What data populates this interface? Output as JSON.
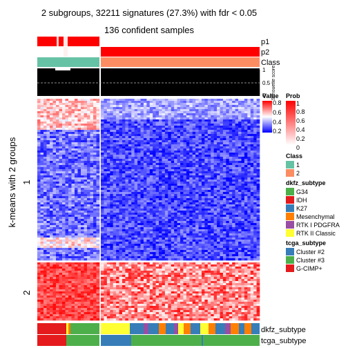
{
  "chart_data": {
    "type": "heatmap",
    "title": "2 subgroups, 32211 signatures (27.3%) with fdr < 0.05",
    "subtitle": "136 confident samples",
    "ylabel": "k-means with 2 groups",
    "row_groups": [
      {
        "label": "1",
        "row_fraction": 0.74
      },
      {
        "label": "2",
        "row_fraction": 0.26
      }
    ],
    "column_groups": [
      {
        "class": "1",
        "n_samples": 31
      },
      {
        "class": "2",
        "n_samples": 105
      }
    ],
    "annotation_tracks": {
      "top": [
        "p1",
        "p2",
        "Class"
      ],
      "silhouette": {
        "label": "Silhouette score",
        "ticks": [
          "1",
          "0.5",
          "0"
        ],
        "reference_value": 0.5
      },
      "bottom": [
        "dkfz_subtype",
        "tcga_subtype"
      ]
    },
    "value_legend": {
      "title": "Value",
      "ticks": [
        "0.8",
        "0.6",
        "0.4",
        "0.2"
      ],
      "colors": [
        "#ff0000",
        "#ffffff",
        "#0000ff"
      ]
    },
    "prob_legend": {
      "title": "Prob",
      "ticks": [
        "1",
        "0.8",
        "0.6",
        "0.4",
        "0.2",
        "0"
      ],
      "colors": [
        "#ff0000",
        "#ffffff"
      ]
    },
    "class_legend": {
      "title": "Class",
      "items": [
        {
          "label": "1",
          "color": "#66c2a5"
        },
        {
          "label": "2",
          "color": "#fc8d62"
        }
      ]
    },
    "dkfz_legend": {
      "title": "dkfz_subtype",
      "items": [
        {
          "label": "G34",
          "color": "#4daf4a"
        },
        {
          "label": "IDH",
          "color": "#e41a1c"
        },
        {
          "label": "K27",
          "color": "#377eb8"
        },
        {
          "label": "Mesenchymal",
          "color": "#ff7f00"
        },
        {
          "label": "RTK I PDGFRA",
          "color": "#984ea3"
        },
        {
          "label": "RTK II Classic",
          "color": "#ffff33"
        }
      ]
    },
    "tcga_legend": {
      "title": "tcga_subtype",
      "items": [
        {
          "label": "Cluster #2",
          "color": "#377eb8"
        },
        {
          "label": "Cluster #3",
          "color": "#4daf4a"
        },
        {
          "label": "G-CIMP+",
          "color": "#e41a1c"
        }
      ]
    }
  }
}
